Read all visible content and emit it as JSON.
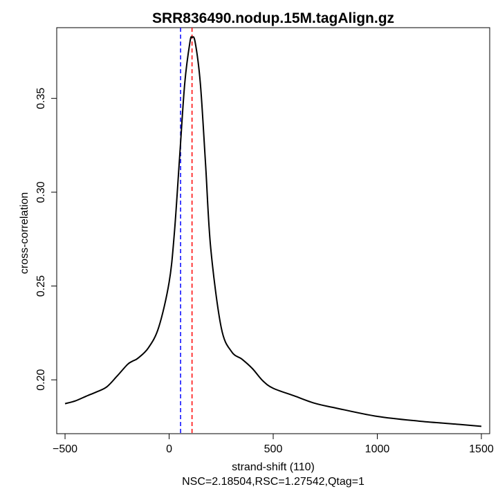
{
  "chart_data": {
    "type": "line",
    "title": "SRR836490.nodup.15M.tagAlign.gz",
    "xlabel": "strand-shift (110)",
    "ylabel": "cross-correlation",
    "subtitle": "NSC=2.18504,RSC=1.27542,Qtag=1",
    "xlim": [
      -540,
      1540
    ],
    "ylim": [
      0.1713,
      0.3877
    ],
    "x_ticks": [
      -500,
      0,
      500,
      1000,
      1500
    ],
    "x_tick_labels": [
      "−500",
      "0",
      "500",
      "1000",
      "1500"
    ],
    "y_ticks": [
      0.2,
      0.25,
      0.3,
      0.35
    ],
    "y_tick_labels": [
      "0.20",
      "0.25",
      "0.30",
      "0.35"
    ],
    "grid": false,
    "series": [
      {
        "color": "#000000",
        "x": [
          -500,
          -450,
          -400,
          -350,
          -300,
          -250,
          -200,
          -175,
          -150,
          -100,
          -50,
          0,
          25,
          50,
          75,
          100,
          110,
          125,
          150,
          175,
          200,
          250,
          300,
          350,
          400,
          450,
          500,
          600,
          700,
          800,
          1000,
          1200,
          1400,
          1500
        ],
        "y": [
          0.1873,
          0.1888,
          0.1912,
          0.1935,
          0.1962,
          0.202,
          0.2082,
          0.21,
          0.2115,
          0.217,
          0.228,
          0.252,
          0.278,
          0.318,
          0.358,
          0.38,
          0.3825,
          0.38,
          0.358,
          0.315,
          0.27,
          0.228,
          0.215,
          0.211,
          0.206,
          0.1995,
          0.1955,
          0.1915,
          0.1875,
          0.185,
          0.1805,
          0.178,
          0.1762,
          0.1752
        ]
      }
    ],
    "vlines": [
      {
        "x": 55,
        "color": "#0000ff",
        "style": "dashed"
      },
      {
        "x": 110,
        "color": "#ff0000",
        "style": "dashed"
      }
    ]
  }
}
